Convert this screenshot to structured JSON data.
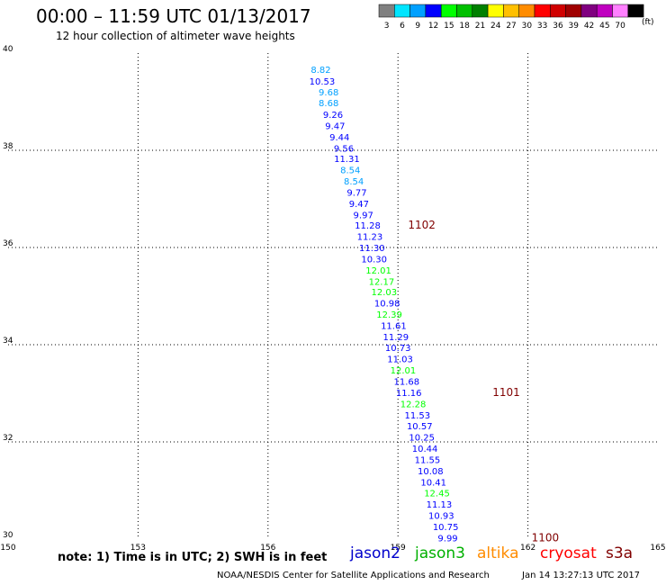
{
  "header": {
    "title": "00:00 – 11:59 UTC 01/13/2017",
    "subtitle": "12 hour collection of altimeter wave heights"
  },
  "legend": {
    "unit": "(ft)",
    "bins": [
      {
        "label": "3",
        "color": "#808080"
      },
      {
        "label": "6",
        "color": "#00e5ff"
      },
      {
        "label": "9",
        "color": "#00a0ff"
      },
      {
        "label": "12",
        "color": "#0000ff"
      },
      {
        "label": "15",
        "color": "#00ff00"
      },
      {
        "label": "18",
        "color": "#00c000"
      },
      {
        "label": "21",
        "color": "#008000"
      },
      {
        "label": "24",
        "color": "#ffff00"
      },
      {
        "label": "27",
        "color": "#ffc000"
      },
      {
        "label": "30",
        "color": "#ff8c00"
      },
      {
        "label": "33",
        "color": "#ff0000"
      },
      {
        "label": "36",
        "color": "#d00000"
      },
      {
        "label": "39",
        "color": "#a00000"
      },
      {
        "label": "42",
        "color": "#800080"
      },
      {
        "label": "45",
        "color": "#c000c0"
      },
      {
        "label": "70",
        "color": "#ff80ff"
      },
      {
        "label": "",
        "color": "#000000"
      }
    ]
  },
  "chart_data": {
    "type": "scatter",
    "xlim": [
      150,
      165
    ],
    "ylim": [
      30,
      40
    ],
    "xticks": [
      "150",
      "153",
      "156",
      "159",
      "162",
      "165"
    ],
    "yticks": [
      "30",
      "32",
      "34",
      "36",
      "38",
      "40"
    ],
    "grid": true,
    "points": [
      {
        "x": 157.22,
        "y": 39.67,
        "v": "8.82",
        "color": "#00a0ff"
      },
      {
        "x": 157.25,
        "y": 39.43,
        "v": "10.53",
        "color": "#0000ff"
      },
      {
        "x": 157.4,
        "y": 39.2,
        "v": "9.68",
        "color": "#00a0ff"
      },
      {
        "x": 157.4,
        "y": 38.98,
        "v": "8.68",
        "color": "#00a0ff"
      },
      {
        "x": 157.5,
        "y": 38.74,
        "v": "9.26",
        "color": "#0000ff"
      },
      {
        "x": 157.55,
        "y": 38.51,
        "v": "9.47",
        "color": "#0000ff"
      },
      {
        "x": 157.65,
        "y": 38.28,
        "v": "9.44",
        "color": "#0000ff"
      },
      {
        "x": 157.75,
        "y": 38.05,
        "v": "9.56",
        "color": "#0000ff"
      },
      {
        "x": 157.82,
        "y": 37.83,
        "v": "11.31",
        "color": "#0000ff"
      },
      {
        "x": 157.9,
        "y": 37.6,
        "v": "8.54",
        "color": "#00a0ff"
      },
      {
        "x": 157.98,
        "y": 37.37,
        "v": "8.54",
        "color": "#00a0ff"
      },
      {
        "x": 158.05,
        "y": 37.14,
        "v": "9.77",
        "color": "#0000ff"
      },
      {
        "x": 158.1,
        "y": 36.91,
        "v": "9.47",
        "color": "#0000ff"
      },
      {
        "x": 158.2,
        "y": 36.68,
        "v": "9.97",
        "color": "#0000ff"
      },
      {
        "x": 158.3,
        "y": 36.46,
        "v": "11.28",
        "color": "#0000ff"
      },
      {
        "x": 158.35,
        "y": 36.23,
        "v": "11.23",
        "color": "#0000ff"
      },
      {
        "x": 158.4,
        "y": 36.0,
        "v": "11.30",
        "color": "#0000ff"
      },
      {
        "x": 158.45,
        "y": 35.77,
        "v": "10.30",
        "color": "#0000ff"
      },
      {
        "x": 158.55,
        "y": 35.54,
        "v": "12.01",
        "color": "#00ff00"
      },
      {
        "x": 158.62,
        "y": 35.31,
        "v": "12.17",
        "color": "#00ff00"
      },
      {
        "x": 158.68,
        "y": 35.09,
        "v": "12.03",
        "color": "#00ff00"
      },
      {
        "x": 158.75,
        "y": 34.86,
        "v": "10.98",
        "color": "#0000ff"
      },
      {
        "x": 158.8,
        "y": 34.63,
        "v": "12.39",
        "color": "#00ff00"
      },
      {
        "x": 158.9,
        "y": 34.4,
        "v": "11.61",
        "color": "#0000ff"
      },
      {
        "x": 158.95,
        "y": 34.17,
        "v": "11.29",
        "color": "#0000ff"
      },
      {
        "x": 159.0,
        "y": 33.94,
        "v": "10.73",
        "color": "#0000ff"
      },
      {
        "x": 159.05,
        "y": 33.71,
        "v": "11.03",
        "color": "#0000ff"
      },
      {
        "x": 159.12,
        "y": 33.48,
        "v": "12.01",
        "color": "#00ff00"
      },
      {
        "x": 159.2,
        "y": 33.25,
        "v": "11.68",
        "color": "#0000ff"
      },
      {
        "x": 159.25,
        "y": 33.02,
        "v": "11.16",
        "color": "#0000ff"
      },
      {
        "x": 159.35,
        "y": 32.79,
        "v": "12.28",
        "color": "#00ff00"
      },
      {
        "x": 159.45,
        "y": 32.56,
        "v": "11.53",
        "color": "#0000ff"
      },
      {
        "x": 159.5,
        "y": 32.33,
        "v": "10.57",
        "color": "#0000ff"
      },
      {
        "x": 159.55,
        "y": 32.1,
        "v": "10.25",
        "color": "#0000ff"
      },
      {
        "x": 159.62,
        "y": 31.87,
        "v": "10.44",
        "color": "#0000ff"
      },
      {
        "x": 159.68,
        "y": 31.64,
        "v": "11.55",
        "color": "#0000ff"
      },
      {
        "x": 159.75,
        "y": 31.41,
        "v": "10.08",
        "color": "#0000ff"
      },
      {
        "x": 159.82,
        "y": 31.18,
        "v": "10.41",
        "color": "#0000ff"
      },
      {
        "x": 159.9,
        "y": 30.95,
        "v": "12.45",
        "color": "#00ff00"
      },
      {
        "x": 159.95,
        "y": 30.72,
        "v": "11.13",
        "color": "#0000ff"
      },
      {
        "x": 160.0,
        "y": 30.49,
        "v": "10.93",
        "color": "#0000ff"
      },
      {
        "x": 160.1,
        "y": 30.26,
        "v": "10.75",
        "color": "#0000ff"
      },
      {
        "x": 160.15,
        "y": 30.03,
        "v": "9.99",
        "color": "#0000ff"
      }
    ],
    "annotations": [
      {
        "x": 159.55,
        "y": 36.46,
        "text": "1102",
        "color": "#800000"
      },
      {
        "x": 161.5,
        "y": 33.02,
        "text": "1101",
        "color": "#800000"
      },
      {
        "x": 162.4,
        "y": 30.03,
        "text": "1100",
        "color": "#800000"
      }
    ]
  },
  "footer": {
    "note": "note:  1) Time is in UTC;  2) SWH is in feet",
    "credit": "NOAA/NESDIS Center for Satellite Applications and Research",
    "stamp": "Jan 14 13:27:13 UTC 2017",
    "satellites": [
      {
        "name": "jason2",
        "color": "#0000cc"
      },
      {
        "name": "jason3",
        "color": "#00b000"
      },
      {
        "name": "altika",
        "color": "#ff8c00"
      },
      {
        "name": "cryosat",
        "color": "#ff0000"
      },
      {
        "name": "s3a",
        "color": "#800000"
      }
    ]
  }
}
